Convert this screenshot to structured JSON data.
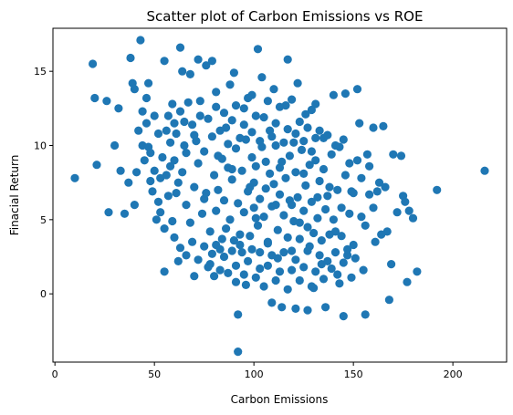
{
  "chart_data": {
    "type": "scatter",
    "title": "Scatter plot of Carbon Emissions vs ROE",
    "xlabel": "Carbon Emissions",
    "ylabel": "Finacial Return",
    "xlim": [
      -1,
      227
    ],
    "ylim": [
      -4.6,
      17.9
    ],
    "xticks": [
      0,
      50,
      100,
      150,
      200
    ],
    "yticks": [
      0,
      5,
      10,
      15
    ],
    "grid": false,
    "color": "#1f77b4",
    "series": [
      {
        "points": [
          [
            10,
            7.8
          ],
          [
            19,
            15.5
          ],
          [
            20,
            13.2
          ],
          [
            21,
            8.7
          ],
          [
            26,
            13.0
          ],
          [
            27,
            5.5
          ],
          [
            30,
            10.0
          ],
          [
            32,
            12.5
          ],
          [
            33,
            8.3
          ],
          [
            35,
            5.4
          ],
          [
            37,
            7.5
          ],
          [
            38,
            15.9
          ],
          [
            39,
            14.2
          ],
          [
            40,
            13.8
          ],
          [
            40,
            6.0
          ],
          [
            41,
            8.2
          ],
          [
            43,
            17.1
          ],
          [
            44,
            12.3
          ],
          [
            45,
            9.0
          ],
          [
            46,
            13.2
          ],
          [
            47,
            14.2
          ],
          [
            48,
            7.6
          ],
          [
            50,
            8.3
          ],
          [
            52,
            6.2
          ],
          [
            53,
            5.5
          ],
          [
            55,
            15.7
          ],
          [
            55,
            1.5
          ],
          [
            57,
            12.0
          ],
          [
            58,
            8.6
          ],
          [
            60,
            11.5
          ],
          [
            61,
            6.8
          ],
          [
            62,
            2.2
          ],
          [
            63,
            16.6
          ],
          [
            64,
            15.0
          ],
          [
            65,
            11.6
          ],
          [
            66,
            9.5
          ],
          [
            68,
            14.8
          ],
          [
            70,
            10.7
          ],
          [
            70,
            1.2
          ],
          [
            72,
            15.8
          ],
          [
            73,
            12.0
          ],
          [
            75,
            6.4
          ],
          [
            76,
            15.4
          ],
          [
            78,
            2.0
          ],
          [
            79,
            15.7
          ],
          [
            80,
            1.2
          ],
          [
            81,
            12.6
          ],
          [
            82,
            9.3
          ],
          [
            84,
            3.7
          ],
          [
            86,
            11.2
          ],
          [
            88,
            14.1
          ],
          [
            89,
            8.4
          ],
          [
            90,
            14.9
          ],
          [
            91,
            0.8
          ],
          [
            92,
            -1.4
          ],
          [
            92,
            -3.9
          ],
          [
            94,
            2.8
          ],
          [
            95,
            12.5
          ],
          [
            96,
            0.6
          ],
          [
            98,
            7.2
          ],
          [
            99,
            13.4
          ],
          [
            101,
            5.1
          ],
          [
            102,
            16.5
          ],
          [
            103,
            1.7
          ],
          [
            104,
            14.6
          ],
          [
            106,
            8.9
          ],
          [
            107,
            3.5
          ],
          [
            108,
            11.0
          ],
          [
            109,
            -0.6
          ],
          [
            110,
            13.8
          ],
          [
            111,
            6.0
          ],
          [
            112,
            2.4
          ],
          [
            113,
            8.5
          ],
          [
            114,
            -0.9
          ],
          [
            116,
            12.7
          ],
          [
            117,
            15.8
          ],
          [
            118,
            6.3
          ],
          [
            119,
            2.9
          ],
          [
            120,
            10.2
          ],
          [
            121,
            -1.0
          ],
          [
            122,
            14.2
          ],
          [
            123,
            4.8
          ],
          [
            125,
            8.1
          ],
          [
            126,
            12.1
          ],
          [
            127,
            -1.1
          ],
          [
            128,
            3.2
          ],
          [
            129,
            9.6
          ],
          [
            130,
            0.4
          ],
          [
            131,
            12.8
          ],
          [
            132,
            6.5
          ],
          [
            134,
            2.0
          ],
          [
            135,
            10.5
          ],
          [
            136,
            -0.9
          ],
          [
            138,
            7.2
          ],
          [
            140,
            13.4
          ],
          [
            141,
            4.2
          ],
          [
            142,
            1.3
          ],
          [
            143,
            9.9
          ],
          [
            144,
            5.8
          ],
          [
            145,
            -1.5
          ],
          [
            146,
            13.5
          ],
          [
            147,
            2.6
          ],
          [
            148,
            8.8
          ],
          [
            149,
            6.9
          ],
          [
            150,
            3.3
          ],
          [
            152,
            13.8
          ],
          [
            153,
            11.5
          ],
          [
            154,
            5.2
          ],
          [
            155,
            1.6
          ],
          [
            156,
            -1.4
          ],
          [
            157,
            9.4
          ],
          [
            158,
            6.7
          ],
          [
            160,
            11.2
          ],
          [
            161,
            3.5
          ],
          [
            163,
            7.5
          ],
          [
            165,
            11.3
          ],
          [
            167,
            4.2
          ],
          [
            168,
            -0.4
          ],
          [
            169,
            2.0
          ],
          [
            170,
            9.4
          ],
          [
            172,
            5.5
          ],
          [
            174,
            9.3
          ],
          [
            175,
            6.6
          ],
          [
            176,
            6.2
          ],
          [
            177,
            0.8
          ],
          [
            178,
            5.6
          ],
          [
            180,
            5.1
          ],
          [
            182,
            1.5
          ],
          [
            192,
            7.0
          ],
          [
            216,
            8.3
          ],
          [
            60,
            9.0
          ],
          [
            62,
            7.5
          ],
          [
            64,
            8.2
          ],
          [
            66,
            6.0
          ],
          [
            68,
            4.8
          ],
          [
            70,
            7.2
          ],
          [
            72,
            8.8
          ],
          [
            74,
            5.4
          ],
          [
            75,
            9.6
          ],
          [
            76,
            6.8
          ],
          [
            78,
            4.2
          ],
          [
            80,
            8.0
          ],
          [
            81,
            5.6
          ],
          [
            82,
            7.0
          ],
          [
            83,
            3.0
          ],
          [
            84,
            9.1
          ],
          [
            85,
            6.3
          ],
          [
            86,
            4.4
          ],
          [
            87,
            8.5
          ],
          [
            88,
            5.0
          ],
          [
            89,
            7.7
          ],
          [
            90,
            3.6
          ],
          [
            91,
            9.8
          ],
          [
            92,
            6.1
          ],
          [
            93,
            4.0
          ],
          [
            94,
            8.3
          ],
          [
            95,
            5.5
          ],
          [
            96,
            10.4
          ],
          [
            97,
            6.9
          ],
          [
            98,
            3.9
          ],
          [
            99,
            9.2
          ],
          [
            100,
            5.8
          ],
          [
            100,
            7.5
          ],
          [
            101,
            8.6
          ],
          [
            102,
            4.6
          ],
          [
            103,
            6.4
          ],
          [
            104,
            9.9
          ],
          [
            105,
            5.2
          ],
          [
            106,
            7.1
          ],
          [
            107,
            3.4
          ],
          [
            108,
            8.1
          ],
          [
            109,
            5.9
          ],
          [
            110,
            7.4
          ],
          [
            111,
            10.0
          ],
          [
            112,
            4.3
          ],
          [
            113,
            6.7
          ],
          [
            114,
            8.9
          ],
          [
            115,
            5.3
          ],
          [
            116,
            7.8
          ],
          [
            117,
            3.8
          ],
          [
            118,
            9.3
          ],
          [
            119,
            6.0
          ],
          [
            120,
            4.9
          ],
          [
            121,
            8.2
          ],
          [
            122,
            6.5
          ],
          [
            123,
            3.7
          ],
          [
            124,
            9.7
          ],
          [
            125,
            5.6
          ],
          [
            126,
            7.3
          ],
          [
            127,
            4.5
          ],
          [
            128,
            8.7
          ],
          [
            129,
            6.2
          ],
          [
            130,
            4.1
          ],
          [
            131,
            9.0
          ],
          [
            132,
            5.1
          ],
          [
            133,
            7.6
          ],
          [
            134,
            3.6
          ],
          [
            135,
            8.4
          ],
          [
            136,
            5.7
          ],
          [
            137,
            6.6
          ],
          [
            138,
            4.0
          ],
          [
            139,
            9.4
          ],
          [
            140,
            5.0
          ],
          [
            142,
            7.0
          ],
          [
            144,
            3.9
          ],
          [
            146,
            8.0
          ],
          [
            148,
            5.4
          ],
          [
            150,
            6.8
          ],
          [
            152,
            9.0
          ],
          [
            154,
            7.8
          ],
          [
            156,
            4.6
          ],
          [
            158,
            8.6
          ],
          [
            160,
            5.8
          ],
          [
            162,
            6.9
          ],
          [
            164,
            4.0
          ],
          [
            166,
            7.2
          ],
          [
            56,
            11.0
          ],
          [
            58,
            10.2
          ],
          [
            59,
            12.8
          ],
          [
            61,
            10.8
          ],
          [
            63,
            12.3
          ],
          [
            65,
            10.0
          ],
          [
            67,
            12.9
          ],
          [
            69,
            11.4
          ],
          [
            71,
            10.3
          ],
          [
            73,
            13.0
          ],
          [
            77,
            11.8
          ],
          [
            79,
            10.6
          ],
          [
            81,
            13.6
          ],
          [
            83,
            11.0
          ],
          [
            85,
            12.2
          ],
          [
            87,
            10.1
          ],
          [
            89,
            11.7
          ],
          [
            91,
            12.7
          ],
          [
            93,
            10.5
          ],
          [
            95,
            11.4
          ],
          [
            97,
            13.2
          ],
          [
            99,
            10.9
          ],
          [
            101,
            12.0
          ],
          [
            103,
            10.3
          ],
          [
            105,
            11.9
          ],
          [
            107,
            13.0
          ],
          [
            109,
            10.6
          ],
          [
            111,
            11.5
          ],
          [
            113,
            12.6
          ],
          [
            115,
            10.2
          ],
          [
            117,
            11.1
          ],
          [
            119,
            13.1
          ],
          [
            121,
            10.8
          ],
          [
            123,
            11.6
          ],
          [
            125,
            10.3
          ],
          [
            127,
            11.2
          ],
          [
            129,
            12.4
          ],
          [
            131,
            10.5
          ],
          [
            133,
            11.0
          ],
          [
            137,
            10.7
          ],
          [
            141,
            10.0
          ],
          [
            145,
            10.4
          ],
          [
            60,
            3.8
          ],
          [
            63,
            3.1
          ],
          [
            66,
            2.6
          ],
          [
            69,
            3.5
          ],
          [
            72,
            2.3
          ],
          [
            75,
            3.2
          ],
          [
            77,
            1.8
          ],
          [
            79,
            2.7
          ],
          [
            81,
            3.3
          ],
          [
            83,
            1.6
          ],
          [
            85,
            2.5
          ],
          [
            87,
            1.4
          ],
          [
            89,
            2.9
          ],
          [
            91,
            1.9
          ],
          [
            93,
            3.3
          ],
          [
            95,
            1.3
          ],
          [
            97,
            2.2
          ],
          [
            99,
            3.0
          ],
          [
            101,
            1.1
          ],
          [
            103,
            2.8
          ],
          [
            105,
            0.5
          ],
          [
            107,
            1.9
          ],
          [
            109,
            2.6
          ],
          [
            111,
            0.9
          ],
          [
            113,
            1.5
          ],
          [
            115,
            2.8
          ],
          [
            117,
            0.3
          ],
          [
            119,
            1.6
          ],
          [
            121,
            2.3
          ],
          [
            123,
            0.9
          ],
          [
            125,
            1.8
          ],
          [
            127,
            2.9
          ],
          [
            129,
            0.5
          ],
          [
            131,
            1.5
          ],
          [
            133,
            2.6
          ],
          [
            135,
            1.0
          ],
          [
            137,
            2.2
          ],
          [
            139,
            1.7
          ],
          [
            141,
            2.8
          ],
          [
            143,
            0.7
          ],
          [
            145,
            2.1
          ],
          [
            147,
            3.0
          ],
          [
            149,
            1.1
          ],
          [
            151,
            2.4
          ],
          [
            44,
            10.0
          ],
          [
            46,
            11.5
          ],
          [
            48,
            9.5
          ],
          [
            50,
            12.0
          ],
          [
            52,
            10.8
          ],
          [
            54,
            9.2
          ],
          [
            49,
            6.9
          ],
          [
            51,
            5.0
          ],
          [
            53,
            7.8
          ],
          [
            55,
            4.4
          ],
          [
            57,
            6.6
          ],
          [
            59,
            4.9
          ],
          [
            47,
            9.9
          ],
          [
            42,
            11.0
          ],
          [
            56,
            8.0
          ]
        ]
      }
    ]
  }
}
